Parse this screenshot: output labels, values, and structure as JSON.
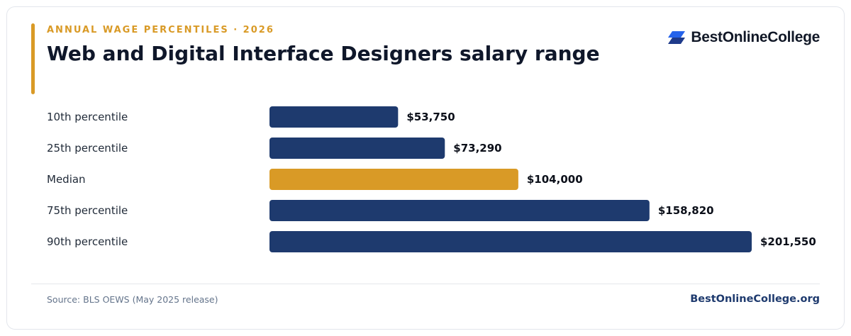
{
  "header": {
    "eyebrow": "ANNUAL WAGE PERCENTILES · 2026",
    "title": "Web and Digital Interface Designers salary range"
  },
  "brand": {
    "name": "BestOnlineCollege",
    "logo_icon": "stacked-parallelogram-icon",
    "logo_colors": [
      "#2563eb",
      "#1e3a8a"
    ]
  },
  "colors": {
    "bar": "#1e3a6e",
    "highlight": "#d99a26"
  },
  "chart_data": {
    "type": "bar",
    "orientation": "horizontal",
    "categories": [
      "10th percentile",
      "25th percentile",
      "Median",
      "75th percentile",
      "90th percentile"
    ],
    "values": [
      53750,
      73290,
      104000,
      158820,
      201550
    ],
    "value_labels": [
      "$53,750",
      "$73,290",
      "$104,000",
      "$158,820",
      "$201,550"
    ],
    "highlight_category": "Median",
    "xlim": [
      0,
      201550
    ],
    "grid": false,
    "legend": "none"
  },
  "footer": {
    "source": "Source: BLS OEWS (May 2025 release)",
    "site": "BestOnlineCollege.org"
  }
}
